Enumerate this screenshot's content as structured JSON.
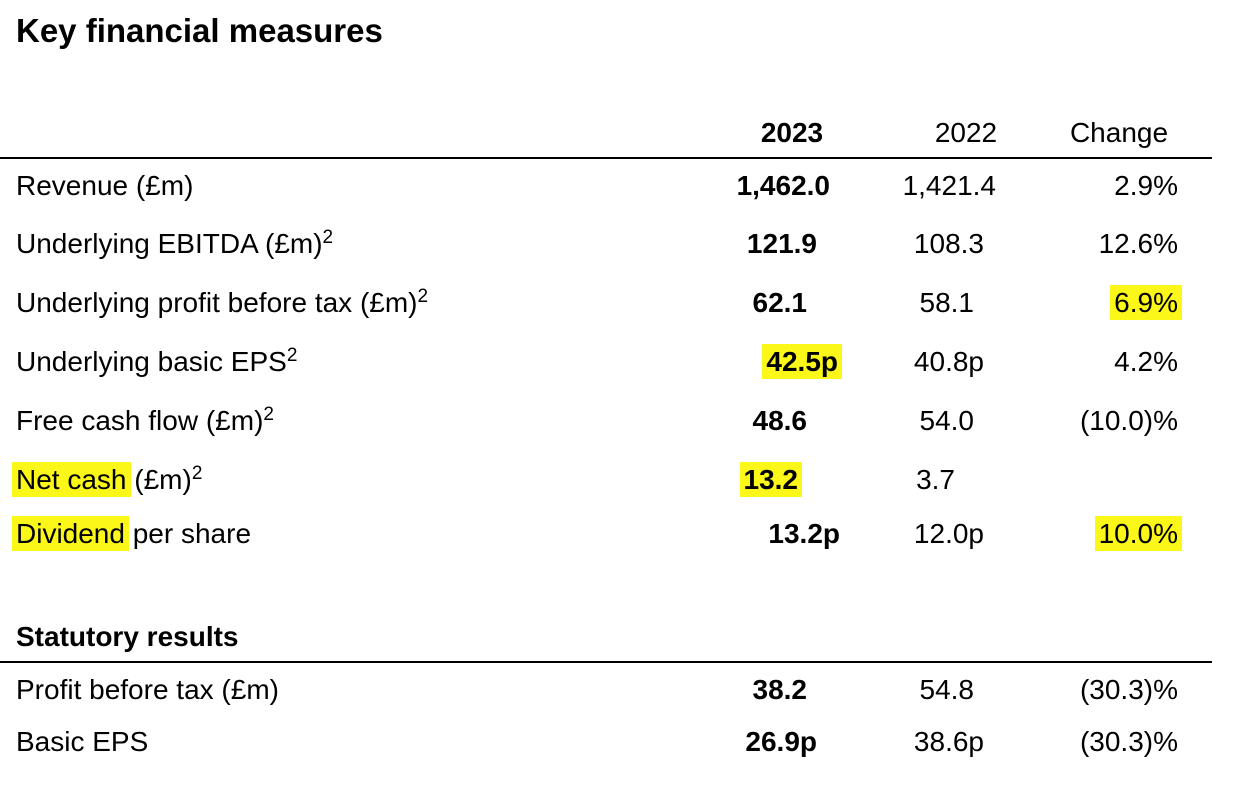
{
  "title": "Key financial measures",
  "columns": {
    "y2023": "2023",
    "y2022": "2022",
    "change": "Change"
  },
  "key_rows": [
    {
      "label": "Revenue (£m)",
      "sup": "",
      "v2023": "1,462.0",
      "v2022": "1,421.4",
      "change": "2.9%"
    },
    {
      "label": "Underlying EBITDA (£m)",
      "sup": "2",
      "v2023": "121.9",
      "v2022": "108.3",
      "change": "12.6%"
    },
    {
      "label": "Underlying profit before tax (£m)",
      "sup": "2",
      "v2023": "62.1",
      "v2022": "58.1",
      "change": "6.9%"
    },
    {
      "label": "Underlying basic EPS",
      "sup": "2",
      "v2023": "42.5p",
      "v2022": "40.8p",
      "change": "4.2%"
    },
    {
      "label": "Free cash flow (£m)",
      "sup": "2",
      "v2023": "48.6",
      "v2022": "54.0",
      "change": "(10.0)%"
    },
    {
      "label_highlight": "Net cash",
      "label_rest": " (£m)",
      "sup": "2",
      "v2023": "13.2",
      "v2022": "3.7",
      "change": ""
    },
    {
      "label_highlight": "Dividend",
      "label_rest": " per share",
      "sup": "",
      "v2023": "13.2p",
      "v2022": "12.0p",
      "change": "10.0%"
    }
  ],
  "statutory": {
    "title": "Statutory results",
    "rows": [
      {
        "label": "Profit before tax (£m)",
        "v2023": "38.2",
        "v2022": "54.8",
        "change": "(30.3)%"
      },
      {
        "label": "Basic EPS",
        "v2023": "26.9p",
        "v2022": "38.6p",
        "change": "(30.3)%"
      }
    ]
  },
  "highlight_color": "#fbf719"
}
